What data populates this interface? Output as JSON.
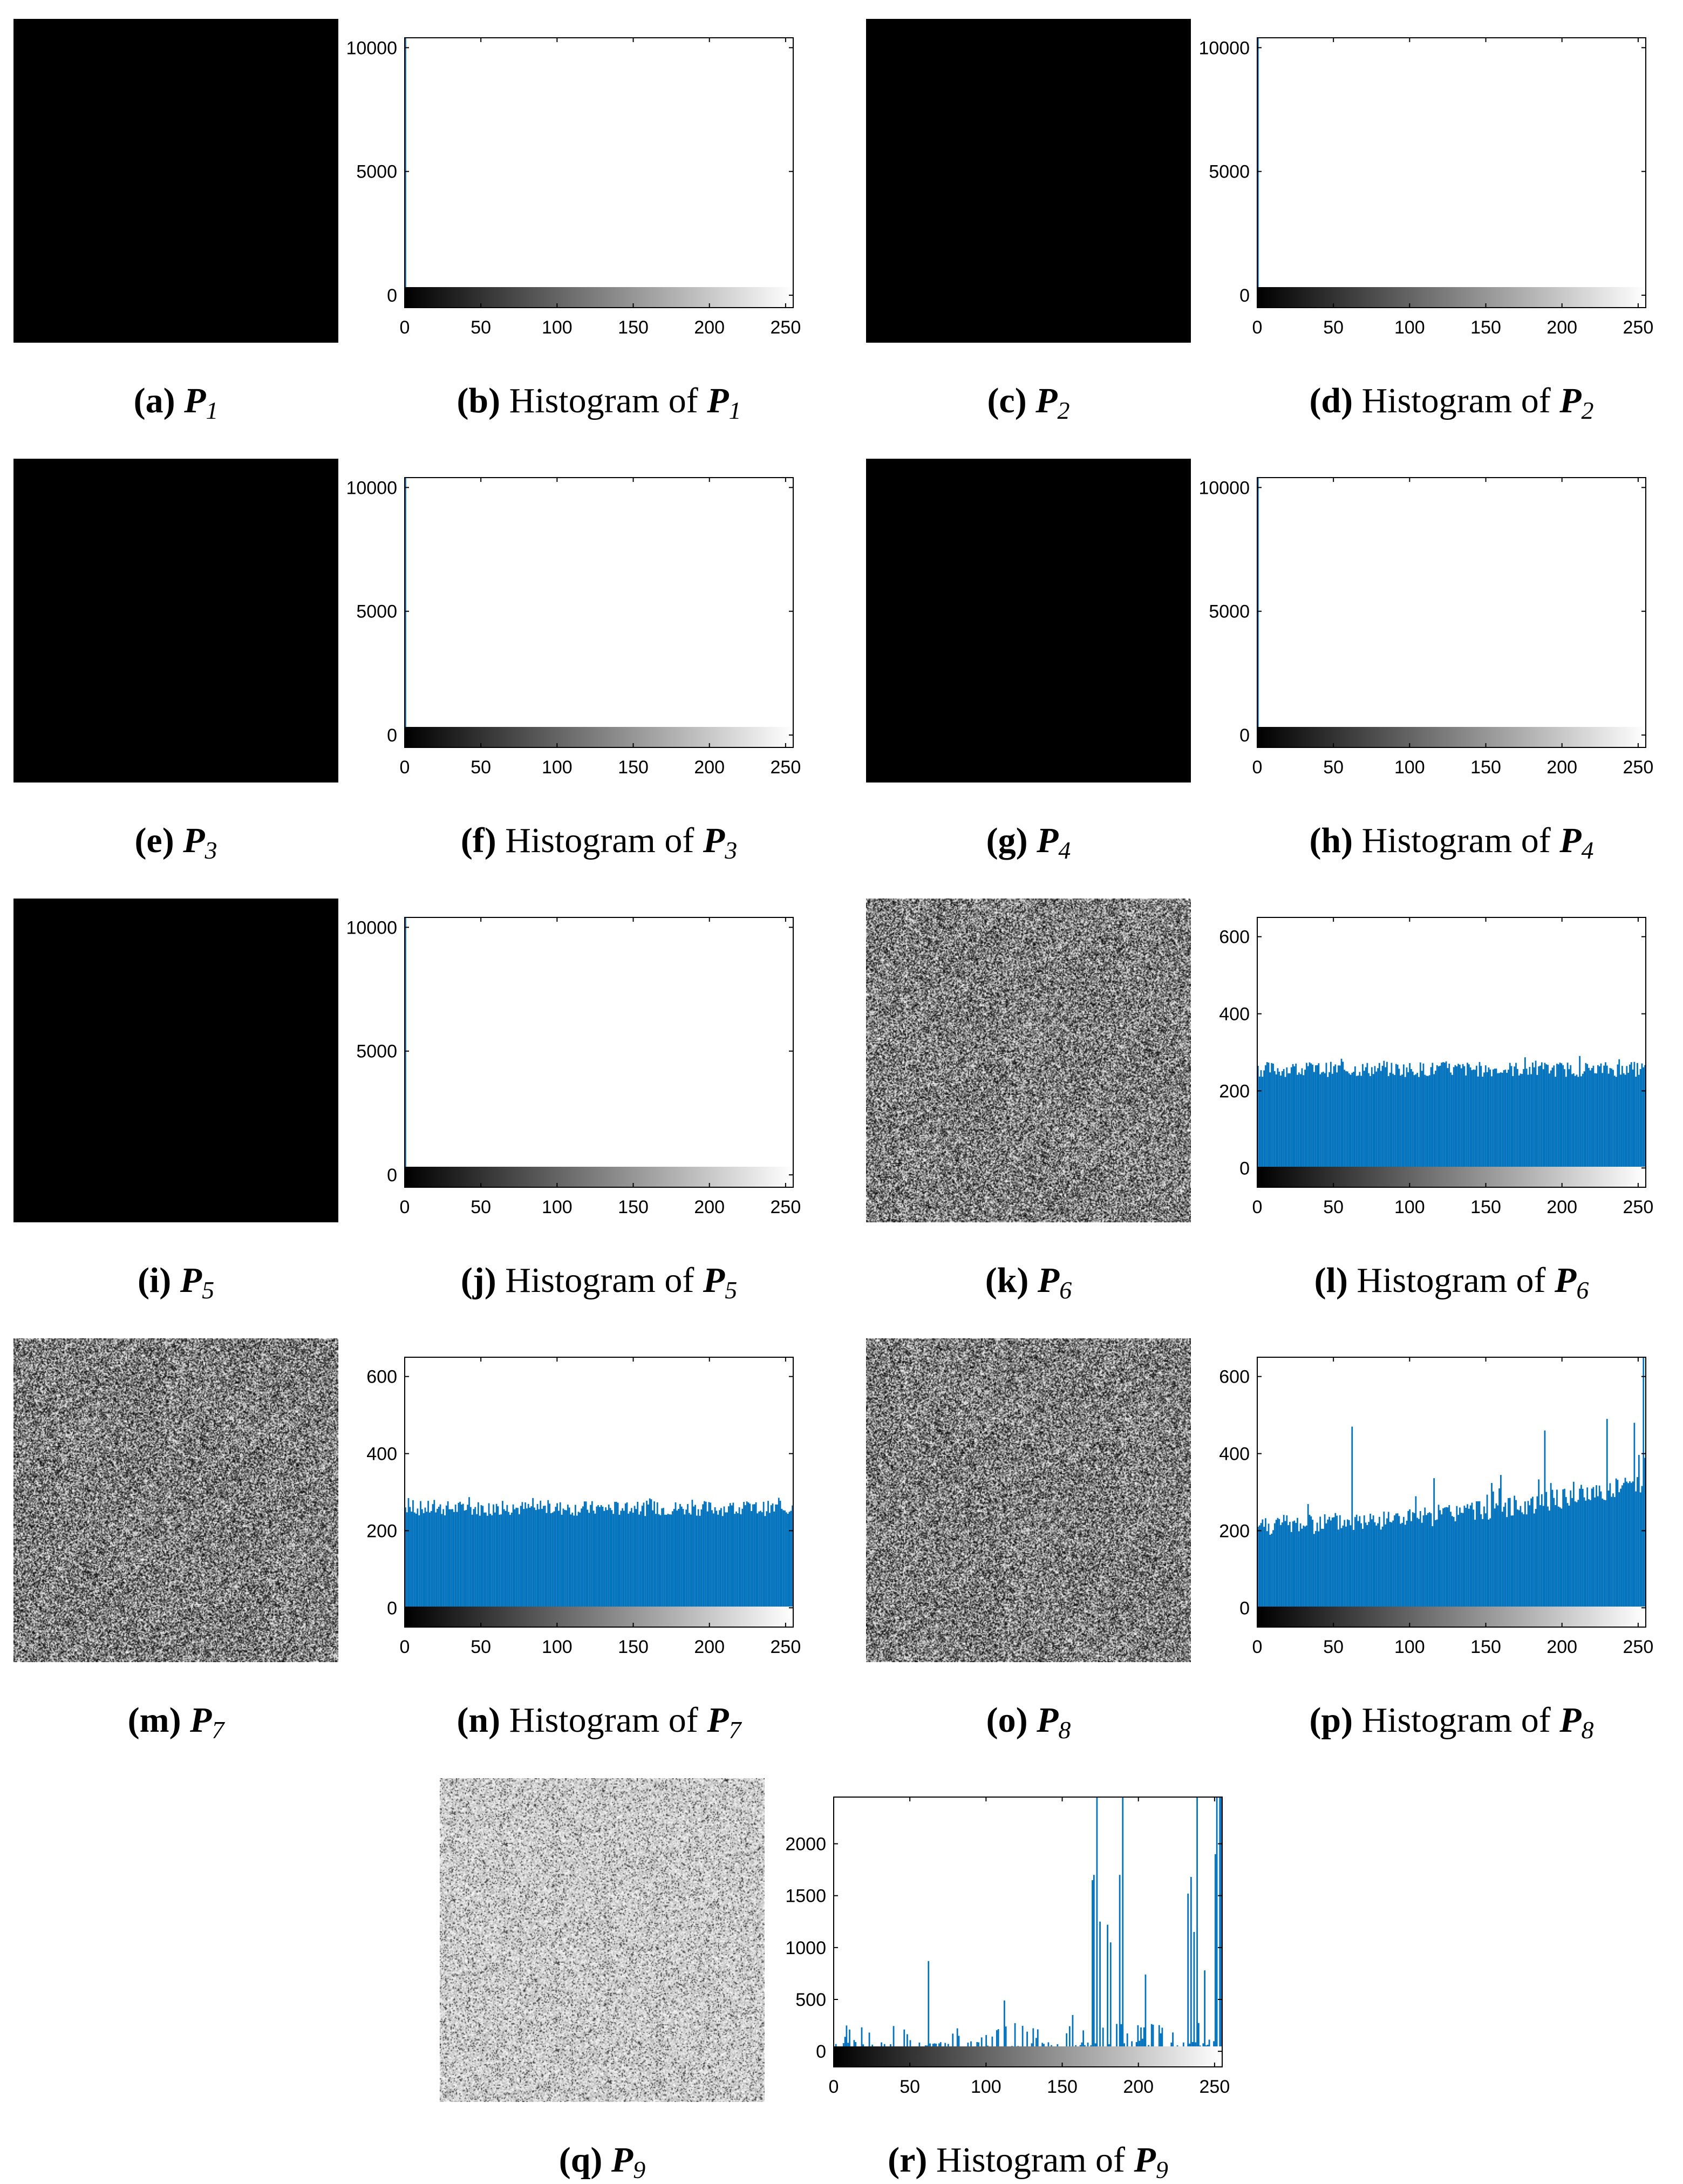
{
  "colors": {
    "bar": "#0072BD",
    "image_black": "#000000",
    "axis": "#000000"
  },
  "panels": [
    {
      "image_label": "a",
      "hist_label": "b",
      "var": "P",
      "sub": "1",
      "image_type": "black",
      "hist_prefix": "Histogram of"
    },
    {
      "image_label": "c",
      "hist_label": "d",
      "var": "P",
      "sub": "2",
      "image_type": "black",
      "hist_prefix": "Histogram of"
    },
    {
      "image_label": "e",
      "hist_label": "f",
      "var": "P",
      "sub": "3",
      "image_type": "black",
      "hist_prefix": "Histogram of"
    },
    {
      "image_label": "g",
      "hist_label": "h",
      "var": "P",
      "sub": "4",
      "image_type": "black",
      "hist_prefix": "Histogram of"
    },
    {
      "image_label": "i",
      "hist_label": "j",
      "var": "P",
      "sub": "5",
      "image_type": "black",
      "hist_prefix": "Histogram of"
    },
    {
      "image_label": "k",
      "hist_label": "l",
      "var": "P",
      "sub": "6",
      "image_type": "noise",
      "hist_prefix": "Histogram of"
    },
    {
      "image_label": "m",
      "hist_label": "n",
      "var": "P",
      "sub": "7",
      "image_type": "noise",
      "hist_prefix": "Histogram of"
    },
    {
      "image_label": "o",
      "hist_label": "p",
      "var": "P",
      "sub": "8",
      "image_type": "noise",
      "hist_prefix": "Histogram of"
    },
    {
      "image_label": "q",
      "hist_label": "r",
      "var": "P",
      "sub": "9",
      "image_type": "light-noise",
      "hist_prefix": "Histogram of"
    }
  ],
  "chart_data": [
    {
      "type": "bar",
      "title": "",
      "xlabel": "",
      "ylabel": "",
      "xlim": [
        0,
        255
      ],
      "ylim": [
        -500,
        10400
      ],
      "xticks": [
        0,
        50,
        100,
        150,
        200,
        250
      ],
      "yticks": [
        0,
        5000,
        10000
      ],
      "profile": "spike",
      "spike": {
        "x": 0,
        "value": 10400
      },
      "colorbar": "grayscale 0 to 255"
    },
    {
      "type": "bar",
      "title": "",
      "xlabel": "",
      "ylabel": "",
      "xlim": [
        0,
        255
      ],
      "ylim": [
        -500,
        10400
      ],
      "xticks": [
        0,
        50,
        100,
        150,
        200,
        250
      ],
      "yticks": [
        0,
        5000,
        10000
      ],
      "profile": "spike",
      "spike": {
        "x": 0,
        "value": 10400
      },
      "colorbar": "grayscale 0 to 255"
    },
    {
      "type": "bar",
      "title": "",
      "xlabel": "",
      "ylabel": "",
      "xlim": [
        0,
        255
      ],
      "ylim": [
        -500,
        10400
      ],
      "xticks": [
        0,
        50,
        100,
        150,
        200,
        250
      ],
      "yticks": [
        0,
        5000,
        10000
      ],
      "profile": "spike",
      "spike": {
        "x": 0,
        "value": 10400
      },
      "colorbar": "grayscale 0 to 255"
    },
    {
      "type": "bar",
      "title": "",
      "xlabel": "",
      "ylabel": "",
      "xlim": [
        0,
        255
      ],
      "ylim": [
        -500,
        10400
      ],
      "xticks": [
        0,
        50,
        100,
        150,
        200,
        250
      ],
      "yticks": [
        0,
        5000,
        10000
      ],
      "profile": "spike",
      "spike": {
        "x": 0,
        "value": 10400
      },
      "colorbar": "grayscale 0 to 255"
    },
    {
      "type": "bar",
      "title": "",
      "xlabel": "",
      "ylabel": "",
      "xlim": [
        0,
        255
      ],
      "ylim": [
        -500,
        10400
      ],
      "xticks": [
        0,
        50,
        100,
        150,
        200,
        250
      ],
      "yticks": [
        0,
        5000,
        10000
      ],
      "profile": "spike",
      "spike": {
        "x": 0,
        "value": 10400
      },
      "colorbar": "grayscale 0 to 255"
    },
    {
      "type": "bar",
      "title": "",
      "xlabel": "",
      "ylabel": "",
      "xlim": [
        0,
        255
      ],
      "ylim": [
        -50,
        650
      ],
      "xticks": [
        0,
        50,
        100,
        150,
        200,
        250
      ],
      "yticks": [
        0,
        200,
        400,
        600
      ],
      "profile": "uniform",
      "mean": 256,
      "spread": 40,
      "seed": 6,
      "colorbar": "grayscale 0 to 255"
    },
    {
      "type": "bar",
      "title": "",
      "xlabel": "",
      "ylabel": "",
      "xlim": [
        0,
        255
      ],
      "ylim": [
        -50,
        650
      ],
      "xticks": [
        0,
        50,
        100,
        150,
        200,
        250
      ],
      "yticks": [
        0,
        200,
        400,
        600
      ],
      "profile": "uniform",
      "mean": 258,
      "spread": 40,
      "seed": 7,
      "colorbar": "grayscale 0 to 255"
    },
    {
      "type": "bar",
      "title": "",
      "xlabel": "",
      "ylabel": "",
      "xlim": [
        0,
        255
      ],
      "ylim": [
        -50,
        650
      ],
      "xticks": [
        0,
        50,
        100,
        150,
        200,
        250
      ],
      "yticks": [
        0,
        200,
        400,
        600
      ],
      "profile": "rising",
      "base": 205,
      "rise": 110,
      "spread": 55,
      "seed": 8,
      "peaks": [
        {
          "x": 62,
          "value": 470
        },
        {
          "x": 189,
          "value": 460
        },
        {
          "x": 230,
          "value": 490
        },
        {
          "x": 248,
          "value": 480
        },
        {
          "x": 254,
          "value": 650
        }
      ],
      "colorbar": "grayscale 0 to 255"
    },
    {
      "type": "bar",
      "title": "",
      "xlabel": "",
      "ylabel": "",
      "xlim": [
        0,
        255
      ],
      "ylim": [
        -150,
        2450
      ],
      "xticks": [
        0,
        50,
        100,
        150,
        200,
        250
      ],
      "yticks": [
        0,
        500,
        1000,
        1500,
        2000
      ],
      "profile": "sparse",
      "seed": 9,
      "peaks": [
        {
          "x": 62,
          "value": 870
        },
        {
          "x": 112,
          "value": 490
        },
        {
          "x": 157,
          "value": 350
        },
        {
          "x": 170,
          "value": 1650
        },
        {
          "x": 171,
          "value": 1700
        },
        {
          "x": 173,
          "value": 2450
        },
        {
          "x": 175,
          "value": 1250
        },
        {
          "x": 180,
          "value": 1220
        },
        {
          "x": 182,
          "value": 1050
        },
        {
          "x": 188,
          "value": 1700
        },
        {
          "x": 190,
          "value": 2450
        },
        {
          "x": 205,
          "value": 740
        },
        {
          "x": 233,
          "value": 1520
        },
        {
          "x": 235,
          "value": 1680
        },
        {
          "x": 237,
          "value": 1150
        },
        {
          "x": 239,
          "value": 2450
        },
        {
          "x": 244,
          "value": 780
        },
        {
          "x": 251,
          "value": 1900
        },
        {
          "x": 252,
          "value": 2450
        },
        {
          "x": 254,
          "value": 2450
        },
        {
          "x": 255,
          "value": 2450
        }
      ],
      "colorbar": "grayscale 0 to 255"
    }
  ]
}
